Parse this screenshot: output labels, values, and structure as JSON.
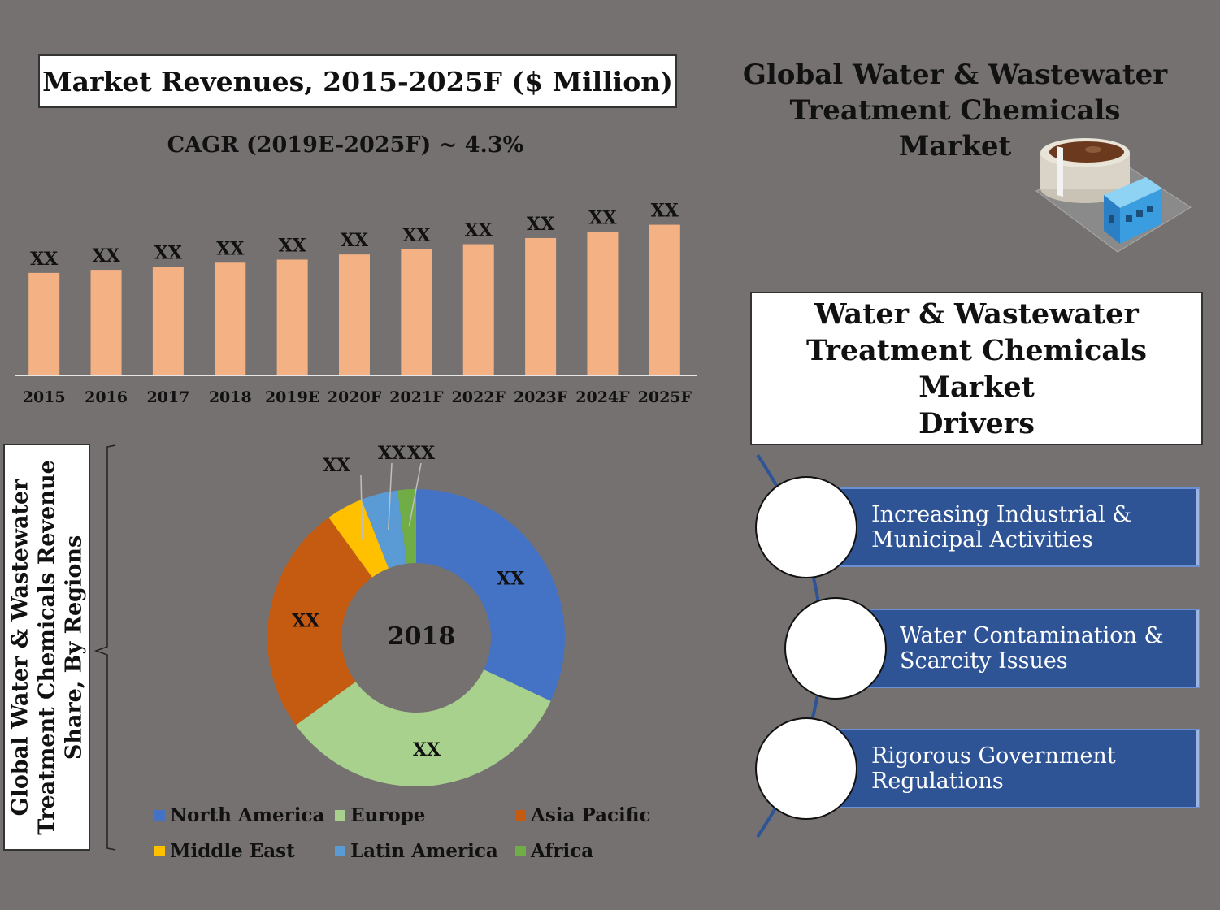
{
  "main_title": {
    "line1": "Global Water & Wastewater",
    "line2": "Treatment Chemicals Market"
  },
  "revenue": {
    "title": "Market Revenues, 2015-2025F ($ Million)",
    "cagr": "CAGR (2019E-2025F) ~ 4.3%"
  },
  "drivers": {
    "title_line1": "Water & Wastewater",
    "title_line2": "Treatment Chemicals Market",
    "title_line3": "Drivers",
    "items": [
      {
        "line1": "Increasing Industrial &",
        "line2": "Municipal Activities"
      },
      {
        "line1": "Water Contamination &",
        "line2": "Scarcity Issues"
      },
      {
        "line1": "Rigorous Government",
        "line2": "Regulations"
      }
    ]
  },
  "share": {
    "vertical_title_line1": "Global Water & Wastewater",
    "vertical_title_line2": "Treatment Chemicals Revenue",
    "vertical_title_line3": "Share, By Regions",
    "year": "2018"
  },
  "colors": {
    "background": "#767171",
    "bar": "#f4b183",
    "driver_bar": "#2f5496"
  },
  "chart_data": [
    {
      "type": "bar",
      "categories": [
        "2015",
        "2016",
        "2017",
        "2018",
        "2019E",
        "2020F",
        "2021F",
        "2022F",
        "2023F",
        "2024F",
        "2025F"
      ],
      "values": [
        100,
        103,
        106,
        110,
        113,
        118,
        123,
        128,
        134,
        140,
        147
      ],
      "data_labels": [
        "XX",
        "XX",
        "XX",
        "XX",
        "XX",
        "XX",
        "XX",
        "XX",
        "XX",
        "XX",
        "XX"
      ],
      "title": "Market Revenues, 2015-2025F ($ Million)",
      "ylim": [
        0,
        150
      ],
      "grid": false
    },
    {
      "type": "pie",
      "style": "donut",
      "title": "2018",
      "categories": [
        "North America",
        "Europe",
        "Asia Pacific",
        "Middle East",
        "Latin America",
        "Africa"
      ],
      "values": [
        32,
        33,
        25,
        4,
        4,
        2
      ],
      "data_labels": [
        "XX",
        "XX",
        "XX",
        "XX",
        "XX",
        "XX"
      ],
      "colors": [
        "#4472c4",
        "#a9d18e",
        "#c55a11",
        "#ffc000",
        "#5b9bd5",
        "#70ad47"
      ],
      "legend": "bottom"
    }
  ]
}
